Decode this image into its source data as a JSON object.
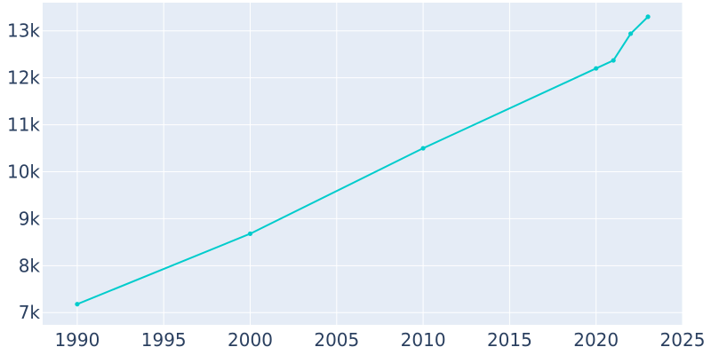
{
  "chart_data": {
    "type": "line",
    "title": "",
    "xlabel": "",
    "ylabel": "",
    "x": [
      1990,
      2000,
      2010,
      2020,
      2021,
      2022,
      2023
    ],
    "series": [
      {
        "values": [
          7180,
          8680,
          10500,
          12200,
          12370,
          12940,
          13300
        ]
      }
    ],
    "xlim": [
      1988,
      2025
    ],
    "ylim": [
      6740,
      13600
    ],
    "x_ticks": [
      1990,
      1995,
      2000,
      2005,
      2010,
      2015,
      2020,
      2025
    ],
    "x_tick_labels": [
      "1990",
      "1995",
      "2000",
      "2005",
      "2010",
      "2015",
      "2020",
      "2025"
    ],
    "y_ticks": [
      7000,
      8000,
      9000,
      10000,
      11000,
      12000,
      13000
    ],
    "y_tick_labels": [
      "7k",
      "8k",
      "9k",
      "10k",
      "11k",
      "12k",
      "13k"
    ],
    "grid": true,
    "legend": "none",
    "colors": {
      "line": "#00cccc",
      "plot_background": "#e5ecf6",
      "grid": "#ffffff",
      "tick_text": "#2a3f5f"
    }
  }
}
